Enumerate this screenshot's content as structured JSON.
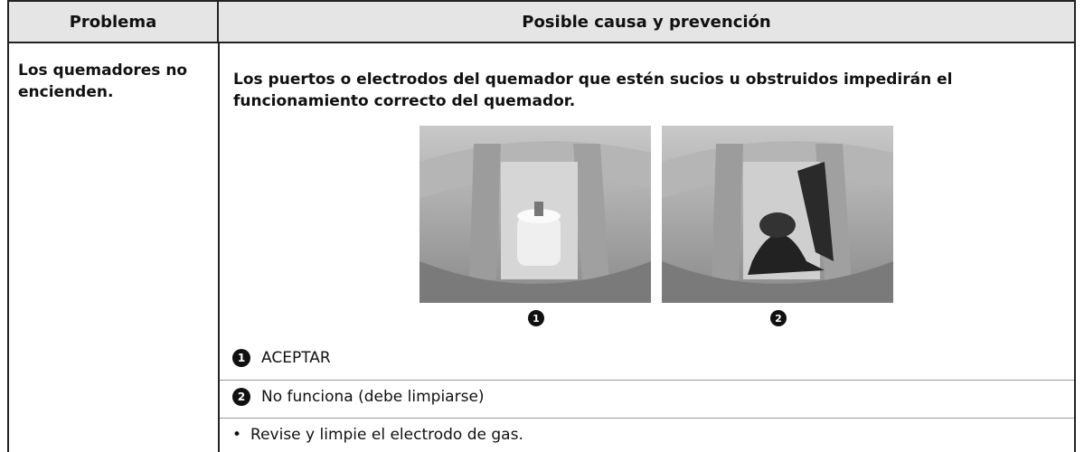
{
  "table": {
    "headers": [
      "Problema",
      "Posible causa y prevención"
    ],
    "rows": [
      {
        "problem": "Los quemadores no encienden.",
        "cause": "Los puertos o electrodos del quemador que estén sucios u obstruidos impedirán el funcionamiento correcto del quemador.",
        "images": [
          {
            "marker": "1"
          },
          {
            "marker": "2"
          }
        ],
        "items": [
          {
            "marker": "1",
            "text": "ACEPTAR"
          },
          {
            "marker": "2",
            "text": "No funciona (debe limpiarse)"
          },
          {
            "marker": "•",
            "text": "Revise y limpie el electrodo de gas."
          }
        ]
      }
    ]
  }
}
